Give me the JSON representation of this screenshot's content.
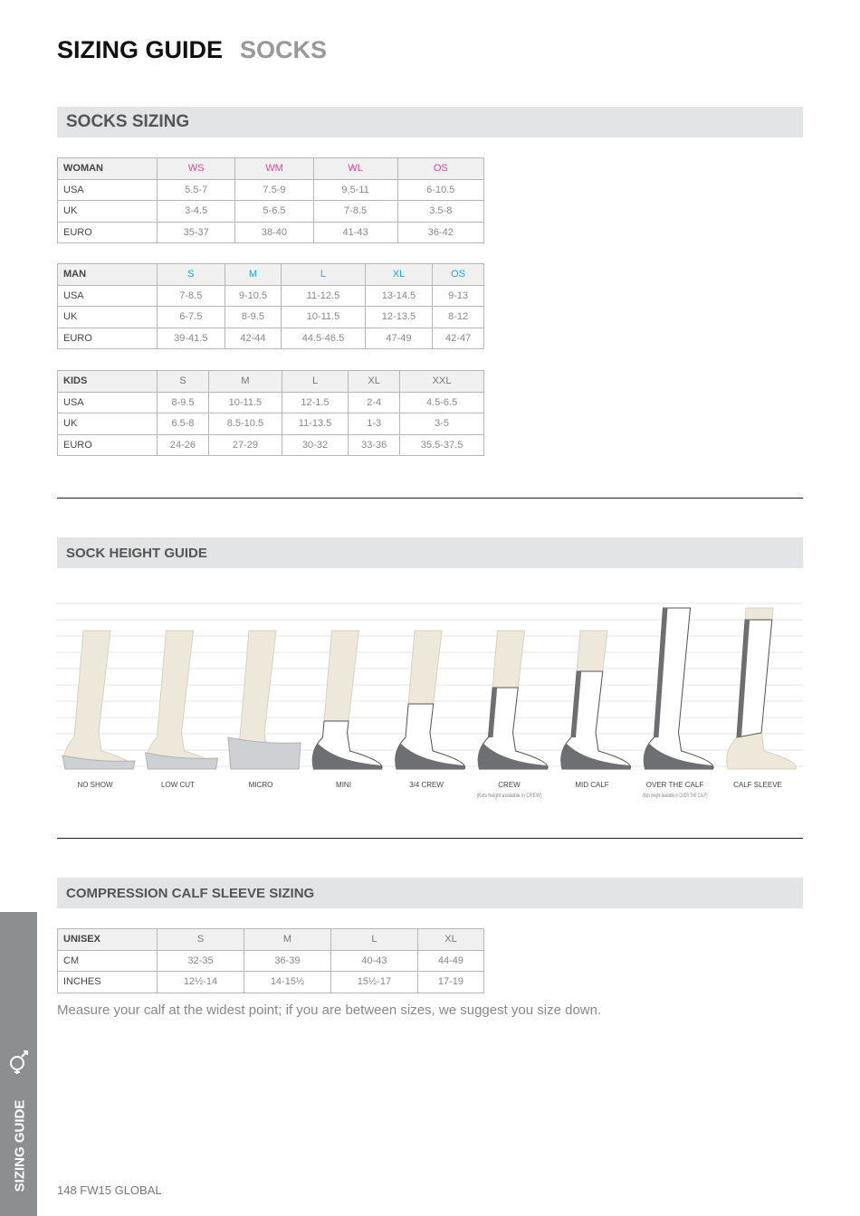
{
  "header": {
    "title": "SIZING GUIDE",
    "subtitle": "SOCKS"
  },
  "socks_sizing": {
    "title": "SOCKS SIZING",
    "tables": [
      {
        "header": [
          "WOMAN",
          "WS",
          "WM",
          "WL",
          "OS"
        ],
        "header_color": "#e0449a",
        "rows": [
          [
            "USA",
            "5.5-7",
            "7.5-9",
            "9.5-11",
            "6-10.5"
          ],
          [
            "UK",
            "3-4.5",
            "5-6.5",
            "7-8.5",
            "3.5-8"
          ],
          [
            "EURO",
            "35-37",
            "38-40",
            "41-43",
            "36-42"
          ]
        ]
      },
      {
        "header": [
          "MAN",
          "S",
          "M",
          "L",
          "XL",
          "OS"
        ],
        "header_color": "#1ba9e1",
        "rows": [
          [
            "USA",
            "7-8.5",
            "9-10.5",
            "11-12.5",
            "13-14.5",
            "9-13"
          ],
          [
            "UK",
            "6-7.5",
            "8-9.5",
            "10-11.5",
            "12-13.5",
            "8-12"
          ],
          [
            "EURO",
            "39-41.5",
            "42-44",
            "44.5-46.5",
            "47-49",
            "42-47"
          ]
        ]
      },
      {
        "header": [
          "KIDS",
          "S",
          "M",
          "L",
          "XL",
          "XXL"
        ],
        "header_color": "#777777",
        "rows": [
          [
            "USA",
            "8-9.5",
            "10-11.5",
            "12-1.5",
            "2-4",
            "4.5-6.5"
          ],
          [
            "UK",
            "6.5-8",
            "8.5-10.5",
            "11-13.5",
            "1-3",
            "3-5"
          ],
          [
            "EURO",
            "24-26",
            "27-29",
            "30-32",
            "33-36",
            "35.5-37.5"
          ]
        ]
      }
    ]
  },
  "sock_height": {
    "title": "SOCK HEIGHT GUIDE",
    "items": [
      {
        "label": "NO SHOW"
      },
      {
        "label": "LOW CUT"
      },
      {
        "label": "MICRO"
      },
      {
        "label": "MINI"
      },
      {
        "label": "3/4 CREW"
      },
      {
        "label": "CREW",
        "note": "(Kids height available in CREW)"
      },
      {
        "label": "MID CALF"
      },
      {
        "label": "OVER THE CALF",
        "note": "(Kids height available in OVER THE CALF)"
      },
      {
        "label": "CALF SLEEVE"
      }
    ]
  },
  "compression": {
    "title": "COMPRESSION CALF SLEEVE SIZING",
    "table": {
      "header": [
        "UNISEX",
        "S",
        "M",
        "L",
        "XL"
      ],
      "header_color": "#777777",
      "rows": [
        [
          "CM",
          "32-35",
          "36-39",
          "40-43",
          "44-49"
        ],
        [
          "INCHES",
          "12½-14",
          "14-15½",
          "15½-17",
          "17-19"
        ]
      ]
    },
    "note": "Measure your calf at the widest point; if you are between sizes, we suggest you size down."
  },
  "sidebar": "SIZING GUIDE",
  "footer": "148 FW15 GLOBAL"
}
